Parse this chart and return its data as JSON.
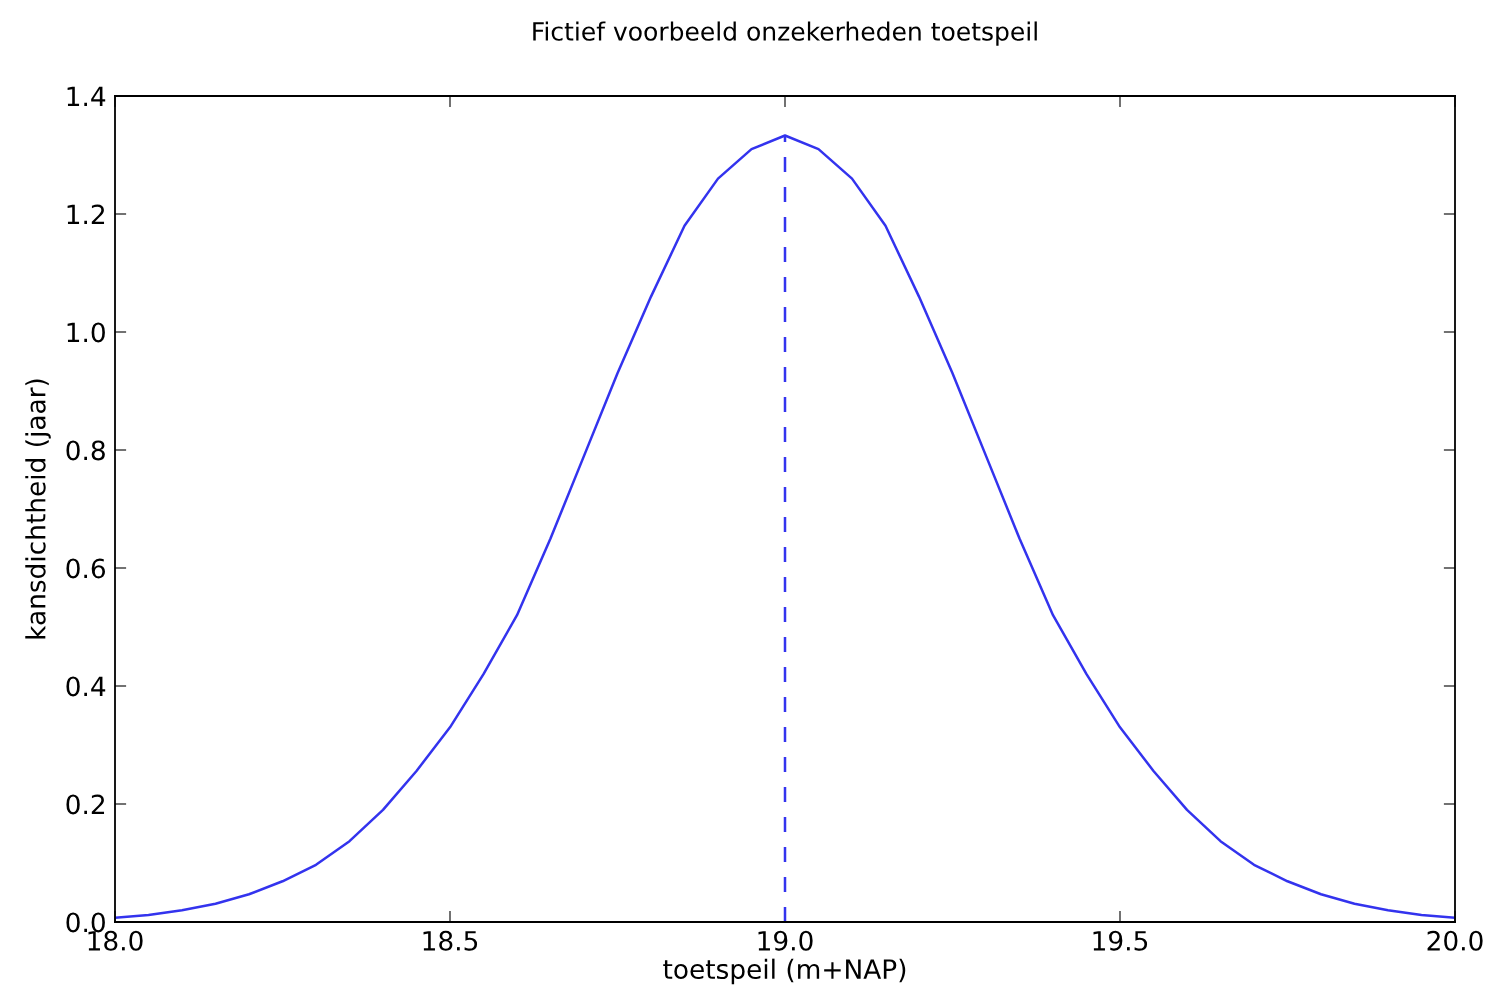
{
  "chart_data": {
    "type": "line",
    "title": "Fictief voorbeeld onzekerheden toetspeil",
    "xlabel": "toetspeil (m+NAP)",
    "ylabel": "kansdichtheid (jaar)",
    "xlim": [
      18.0,
      20.0
    ],
    "xticks": [
      {
        "value": 18.0,
        "label": "18.0"
      },
      {
        "value": 18.5,
        "label": "18.5"
      },
      {
        "value": 19.0,
        "label": "19.0"
      },
      {
        "value": 19.5,
        "label": "19.5"
      },
      {
        "value": 20.0,
        "label": "20.0"
      }
    ],
    "ylim": [
      0.0,
      1.4
    ],
    "yticks": [
      {
        "value": 0.0,
        "label": "0.0"
      },
      {
        "value": 0.2,
        "label": "0.2"
      },
      {
        "value": 0.4,
        "label": "0.4"
      },
      {
        "value": 0.6,
        "label": "0.6"
      },
      {
        "value": 0.8,
        "label": "0.8"
      },
      {
        "value": 1.0,
        "label": "1.0"
      },
      {
        "value": 1.2,
        "label": "1.2"
      },
      {
        "value": 1.4,
        "label": "1.4"
      }
    ],
    "grid": false,
    "series": [
      {
        "color": "#3333ee",
        "line_style": "solid",
        "x": [
          18.0,
          18.05,
          18.1,
          18.15,
          18.2,
          18.25,
          18.3,
          18.35,
          18.4,
          18.45,
          18.5,
          18.55,
          18.6,
          18.65,
          18.7,
          18.75,
          18.8,
          18.85,
          18.9,
          18.95,
          19.0,
          19.05,
          19.1,
          19.15,
          19.2,
          19.25,
          19.3,
          19.35,
          19.4,
          19.45,
          19.5,
          19.55,
          19.6,
          19.65,
          19.7,
          19.75,
          19.8,
          19.85,
          19.9,
          19.95,
          20.0
        ],
        "values": [
          0.007,
          0.012,
          0.02,
          0.031,
          0.047,
          0.069,
          0.097,
          0.137,
          0.19,
          0.256,
          0.33,
          0.42,
          0.52,
          0.65,
          0.79,
          0.93,
          1.06,
          1.18,
          1.26,
          1.31,
          1.333,
          1.31,
          1.26,
          1.18,
          1.06,
          0.93,
          0.79,
          0.65,
          0.52,
          0.42,
          0.33,
          0.256,
          0.19,
          0.137,
          0.097,
          0.069,
          0.047,
          0.031,
          0.02,
          0.012,
          0.007
        ]
      },
      {
        "color": "#3333ee",
        "line_style": "dashed",
        "x": [
          19.0,
          19.0
        ],
        "values": [
          0.0,
          1.333
        ]
      }
    ]
  }
}
